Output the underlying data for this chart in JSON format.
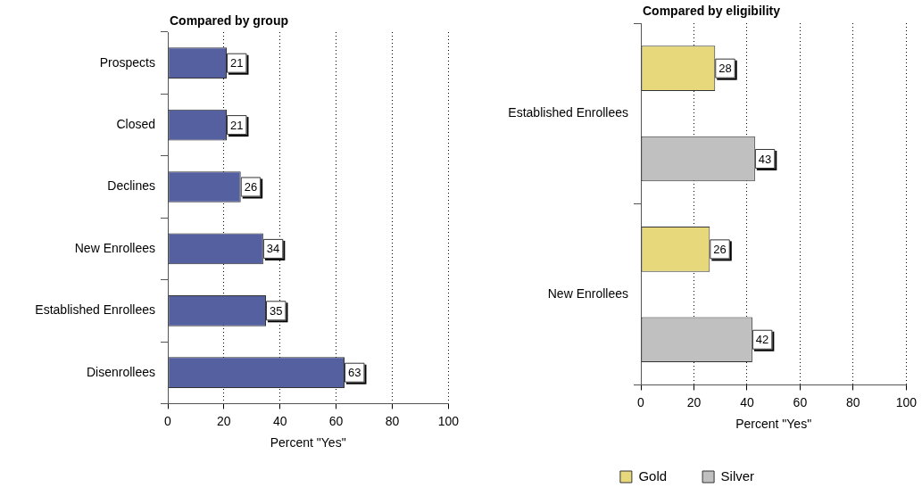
{
  "chart_data": [
    {
      "type": "bar",
      "orientation": "horizontal",
      "title": "Compared by group",
      "xlabel": "Percent \"Yes\"",
      "categories": [
        "Prospects",
        "Closed",
        "Declines",
        "New Enrollees",
        "Established Enrollees",
        "Disenrollees"
      ],
      "values": [
        21,
        21,
        26,
        34,
        35,
        63
      ],
      "color": "#5560a0",
      "xlim": [
        0,
        100
      ],
      "xticks": [
        0,
        20,
        40,
        60,
        80,
        100
      ],
      "grid": "x",
      "data_labels": true
    },
    {
      "type": "bar",
      "orientation": "horizontal",
      "title": "Compared by eligibility",
      "xlabel": "Percent \"Yes\"",
      "categories": [
        "Established Enrollees",
        "New Enrollees"
      ],
      "series": [
        {
          "name": "Gold",
          "color": "#e8d87c",
          "values": [
            28,
            26
          ]
        },
        {
          "name": "Silver",
          "color": "#c0c0c0",
          "values": [
            43,
            42
          ]
        }
      ],
      "xlim": [
        0,
        100
      ],
      "xticks": [
        0,
        20,
        40,
        60,
        80,
        100
      ],
      "grid": "x",
      "legend": "bottom",
      "data_labels": true
    }
  ]
}
